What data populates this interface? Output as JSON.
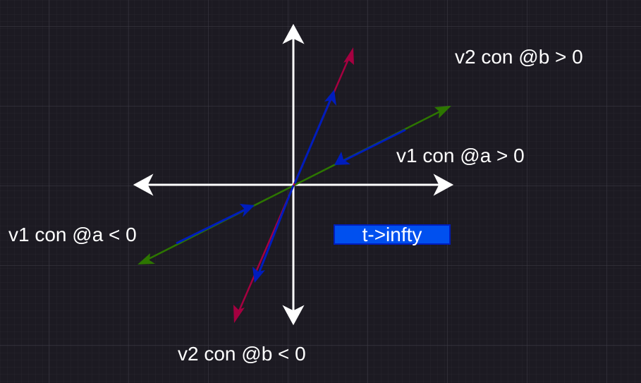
{
  "labels": {
    "v2_pos": "v2 con @b > 0",
    "v1_pos": "v1 con @a > 0",
    "v1_neg": "v1 con @a < 0",
    "v2_neg": "v2 con @b < 0"
  },
  "limit_box": {
    "text": "t->infty"
  },
  "colors": {
    "background": "#1c1a22",
    "grid": "#3a3842",
    "axes": "#ffffff",
    "v1": "#2d7600",
    "v2": "#a50040",
    "flow": "#001dbc",
    "limit_box_fill": "#0050ef"
  }
}
